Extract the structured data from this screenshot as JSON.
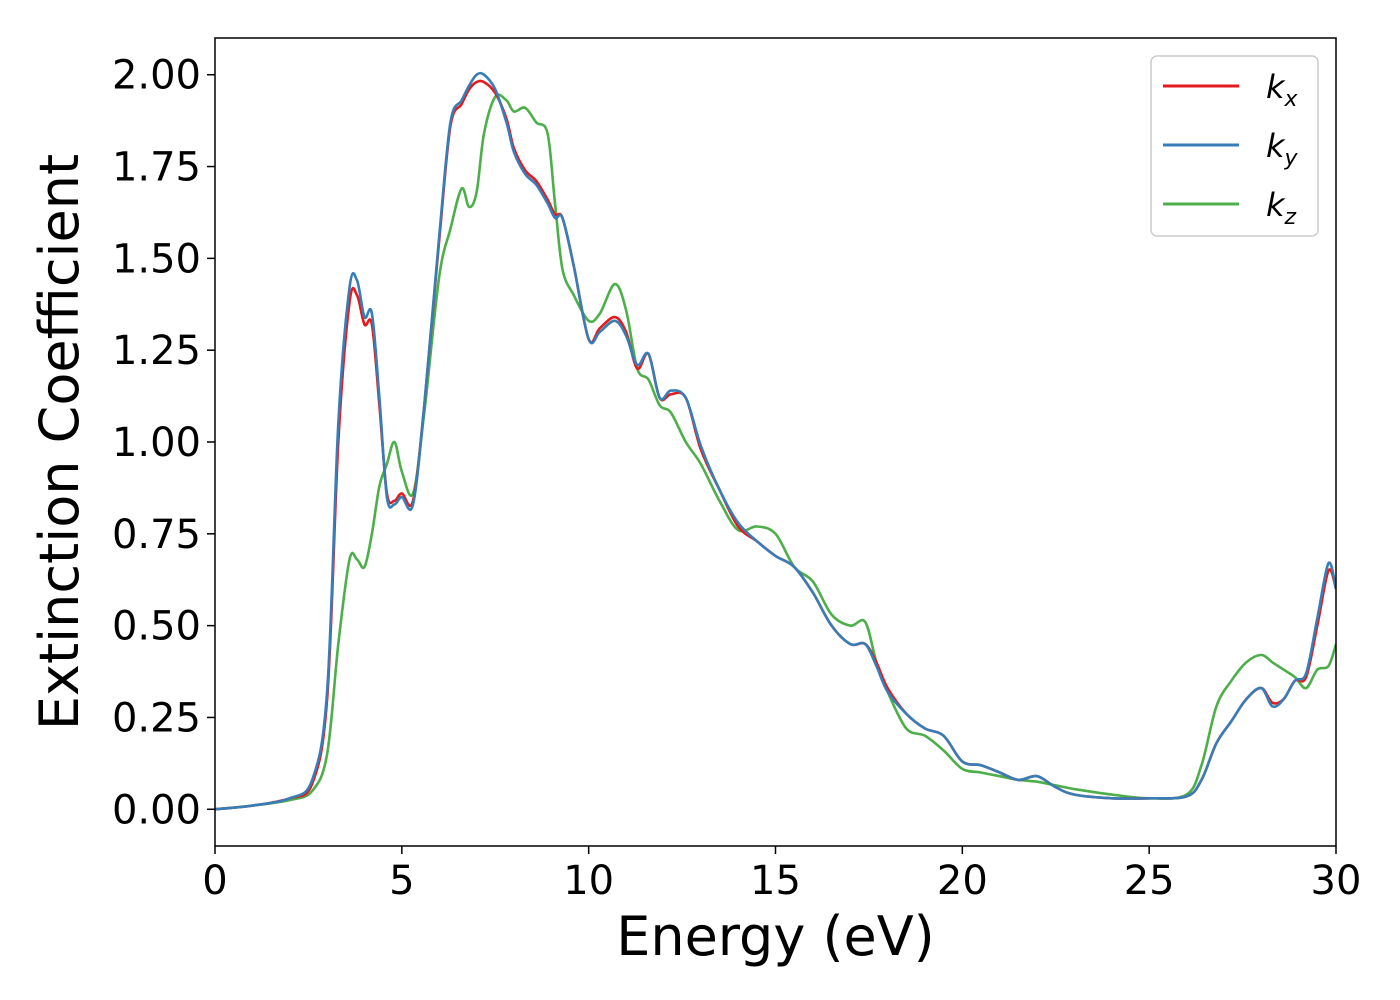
{
  "chart_data": {
    "type": "line",
    "title": "",
    "xlabel": "Energy (eV)",
    "ylabel": "Extinction Coefficient",
    "xlim": [
      0,
      30
    ],
    "ylim": [
      -0.1,
      2.1
    ],
    "xticks": [
      0,
      5,
      10,
      15,
      20,
      25,
      30
    ],
    "xtick_labels": [
      "0",
      "5",
      "10",
      "15",
      "20",
      "25",
      "30"
    ],
    "yticks": [
      0,
      0.25,
      0.5,
      0.75,
      1.0,
      1.25,
      1.5,
      1.75,
      2.0
    ],
    "ytick_labels": [
      "0.00",
      "0.25",
      "0.50",
      "0.75",
      "1.00",
      "1.25",
      "1.50",
      "1.75",
      "2.00"
    ],
    "grid": false,
    "legend_position": "top-right",
    "series": [
      {
        "name": "k",
        "subscript": "x",
        "color": "#e41a1c",
        "x": [
          0,
          1,
          2,
          2.6,
          3.0,
          3.3,
          3.6,
          3.8,
          4.0,
          4.2,
          4.4,
          4.6,
          4.8,
          5.0,
          5.3,
          5.6,
          6.0,
          6.3,
          6.6,
          6.8,
          7.0,
          7.2,
          7.5,
          7.8,
          8.0,
          8.3,
          8.6,
          8.9,
          9.1,
          9.3,
          9.6,
          10.0,
          10.3,
          10.7,
          11.0,
          11.3,
          11.6,
          11.9,
          12.2,
          12.6,
          13.0,
          13.5,
          14.0,
          14.5,
          15.0,
          15.5,
          16.0,
          16.5,
          17.0,
          17.4,
          17.7,
          18.0,
          18.5,
          19.0,
          19.5,
          20.0,
          20.5,
          21.0,
          21.5,
          22.0,
          22.5,
          23.0,
          24.0,
          25.0,
          26.0,
          26.4,
          26.8,
          27.2,
          27.6,
          28.0,
          28.3,
          28.6,
          28.9,
          29.2,
          29.5,
          29.8,
          30.0
        ],
        "values": [
          0,
          0.01,
          0.03,
          0.07,
          0.3,
          1.0,
          1.38,
          1.4,
          1.32,
          1.32,
          1.1,
          0.86,
          0.84,
          0.86,
          0.84,
          1.1,
          1.55,
          1.86,
          1.92,
          1.96,
          1.98,
          1.98,
          1.95,
          1.88,
          1.8,
          1.74,
          1.71,
          1.66,
          1.62,
          1.61,
          1.48,
          1.28,
          1.31,
          1.34,
          1.3,
          1.2,
          1.24,
          1.12,
          1.13,
          1.12,
          0.98,
          0.87,
          0.77,
          0.73,
          0.69,
          0.66,
          0.59,
          0.5,
          0.45,
          0.45,
          0.4,
          0.33,
          0.26,
          0.22,
          0.2,
          0.13,
          0.12,
          0.1,
          0.08,
          0.09,
          0.06,
          0.04,
          0.03,
          0.03,
          0.035,
          0.08,
          0.18,
          0.24,
          0.3,
          0.33,
          0.29,
          0.3,
          0.35,
          0.36,
          0.5,
          0.65,
          0.6
        ]
      },
      {
        "name": "k",
        "subscript": "y",
        "color": "#377eb8",
        "x": [
          0,
          1,
          2,
          2.6,
          3.0,
          3.3,
          3.6,
          3.8,
          4.0,
          4.2,
          4.4,
          4.6,
          4.8,
          5.0,
          5.3,
          5.6,
          6.0,
          6.3,
          6.6,
          6.8,
          7.0,
          7.2,
          7.5,
          7.8,
          8.0,
          8.3,
          8.6,
          8.9,
          9.1,
          9.3,
          9.6,
          10.0,
          10.3,
          10.7,
          11.0,
          11.3,
          11.6,
          11.9,
          12.2,
          12.6,
          13.0,
          13.5,
          14.0,
          14.5,
          15.0,
          15.5,
          16.0,
          16.5,
          17.0,
          17.4,
          17.7,
          18.0,
          18.5,
          19.0,
          19.5,
          20.0,
          20.5,
          21.0,
          21.5,
          22.0,
          22.5,
          23.0,
          24.0,
          25.0,
          26.0,
          26.4,
          26.8,
          27.2,
          27.6,
          28.0,
          28.3,
          28.6,
          28.9,
          29.2,
          29.5,
          29.8,
          30.0
        ],
        "values": [
          0,
          0.01,
          0.03,
          0.08,
          0.32,
          1.05,
          1.42,
          1.44,
          1.34,
          1.35,
          1.12,
          0.85,
          0.83,
          0.85,
          0.83,
          1.1,
          1.56,
          1.87,
          1.93,
          1.97,
          2.0,
          2.0,
          1.96,
          1.87,
          1.79,
          1.73,
          1.7,
          1.65,
          1.61,
          1.61,
          1.48,
          1.28,
          1.3,
          1.33,
          1.29,
          1.21,
          1.24,
          1.12,
          1.14,
          1.12,
          0.99,
          0.87,
          0.78,
          0.73,
          0.69,
          0.66,
          0.59,
          0.5,
          0.45,
          0.45,
          0.39,
          0.32,
          0.26,
          0.22,
          0.2,
          0.13,
          0.12,
          0.1,
          0.08,
          0.09,
          0.06,
          0.04,
          0.03,
          0.03,
          0.035,
          0.08,
          0.18,
          0.24,
          0.3,
          0.33,
          0.28,
          0.3,
          0.35,
          0.37,
          0.52,
          0.67,
          0.6
        ]
      },
      {
        "name": "k",
        "subscript": "z",
        "color": "#4daf4a",
        "x": [
          0,
          1,
          2,
          2.6,
          3.0,
          3.3,
          3.6,
          3.8,
          4.0,
          4.2,
          4.4,
          4.6,
          4.8,
          5.0,
          5.3,
          5.6,
          6.0,
          6.3,
          6.6,
          6.8,
          7.0,
          7.2,
          7.5,
          7.8,
          8.0,
          8.3,
          8.6,
          8.9,
          9.1,
          9.3,
          9.6,
          10.0,
          10.3,
          10.7,
          11.0,
          11.3,
          11.6,
          11.9,
          12.2,
          12.6,
          13.0,
          13.5,
          14.0,
          14.5,
          15.0,
          15.5,
          16.0,
          16.5,
          17.0,
          17.4,
          17.7,
          18.0,
          18.5,
          19.0,
          19.5,
          20.0,
          20.5,
          21.0,
          21.5,
          22.0,
          22.5,
          23.0,
          24.0,
          25.0,
          26.0,
          26.4,
          26.8,
          27.2,
          27.6,
          28.0,
          28.3,
          28.6,
          28.9,
          29.2,
          29.5,
          29.8,
          30.0
        ],
        "values": [
          0,
          0.01,
          0.025,
          0.05,
          0.15,
          0.45,
          0.68,
          0.68,
          0.66,
          0.75,
          0.88,
          0.94,
          1.0,
          0.92,
          0.86,
          1.08,
          1.45,
          1.58,
          1.69,
          1.64,
          1.68,
          1.84,
          1.94,
          1.93,
          1.9,
          1.91,
          1.87,
          1.84,
          1.65,
          1.47,
          1.4,
          1.33,
          1.35,
          1.43,
          1.36,
          1.2,
          1.17,
          1.1,
          1.08,
          1.0,
          0.94,
          0.84,
          0.76,
          0.77,
          0.75,
          0.66,
          0.62,
          0.53,
          0.5,
          0.51,
          0.4,
          0.32,
          0.22,
          0.2,
          0.16,
          0.11,
          0.1,
          0.09,
          0.08,
          0.075,
          0.065,
          0.055,
          0.04,
          0.03,
          0.04,
          0.12,
          0.28,
          0.35,
          0.4,
          0.42,
          0.4,
          0.38,
          0.36,
          0.33,
          0.38,
          0.39,
          0.45
        ]
      }
    ]
  }
}
